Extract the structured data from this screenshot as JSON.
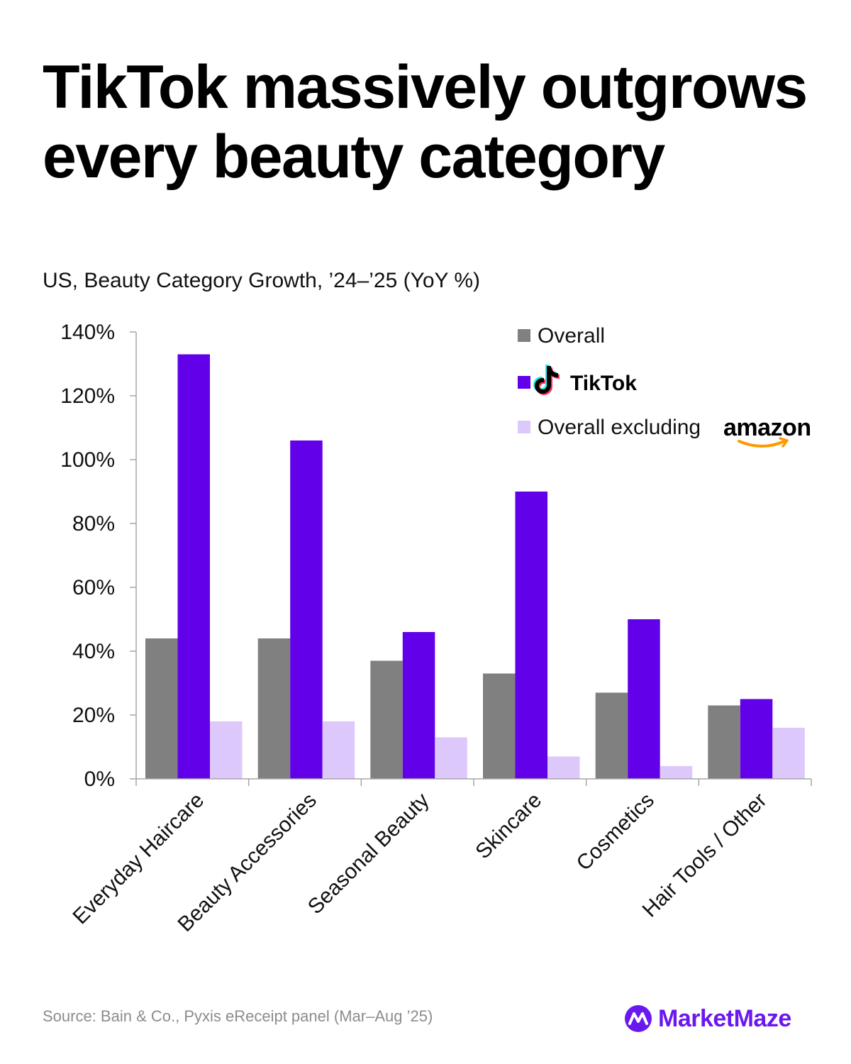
{
  "title": "TikTok massively outgrows every beauty category",
  "subtitle": "US, Beauty Category Growth, ’24–’25 (YoY %)",
  "source": "Source: Bain & Co., Pyxis eReceipt panel (Mar–Aug ’25)",
  "brand": {
    "name": "MarketMaze",
    "icon": "marketmaze-logo-icon",
    "color": "#6a18f0"
  },
  "legend": {
    "overall": "Overall",
    "tiktok": "TikTok",
    "excl_prefix": "Overall excluding",
    "excl_logo": "amazon"
  },
  "chart_data": {
    "type": "bar",
    "categories": [
      "Everyday Haircare",
      "Beauty Accessories",
      "Seasonal Beauty",
      "Skincare",
      "Cosmetics",
      "Hair Tools / Other"
    ],
    "series": [
      {
        "name": "Overall",
        "color": "#808080",
        "values": [
          44,
          44,
          37,
          33,
          27,
          23
        ]
      },
      {
        "name": "TikTok",
        "color": "#6200ea",
        "values": [
          133,
          106,
          46,
          90,
          50,
          25
        ]
      },
      {
        "name": "Overall excluding amazon",
        "color": "#dcc8fb",
        "values": [
          18,
          18,
          13,
          7,
          4,
          16
        ]
      }
    ],
    "yticks": [
      "0%",
      "20%",
      "40%",
      "60%",
      "80%",
      "100%",
      "120%",
      "140%"
    ],
    "ylim": [
      0,
      140
    ],
    "grid": false,
    "legend_position": "top-right"
  }
}
